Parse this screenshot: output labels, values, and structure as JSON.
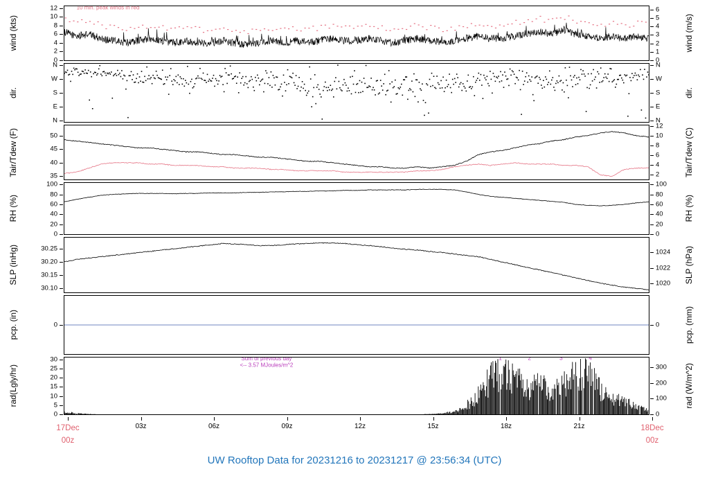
{
  "title": "UW Rooftop Data for 20231216  to  20231217 @ 23:56:34  (UTC)",
  "title_color": "#2276bb",
  "xaxis": {
    "xlim_hours": [
      0,
      24
    ],
    "ticks": [
      {
        "label": "03z",
        "h": 3
      },
      {
        "label": "06z",
        "h": 6
      },
      {
        "label": "09z",
        "h": 9
      },
      {
        "label": "12z",
        "h": 12
      },
      {
        "label": "15z",
        "h": 15
      },
      {
        "label": "18z",
        "h": 18
      },
      {
        "label": "21z",
        "h": 21
      }
    ],
    "start_label": [
      "17Dec",
      "00z"
    ],
    "end_label": [
      "18Dec",
      "00z"
    ],
    "date_color": "#e0606e"
  },
  "chart_data": [
    {
      "name": "wind",
      "type": "line",
      "h": 80,
      "ylabel_left": "wind (kts)",
      "ylabel_right": "wind (m/s)",
      "ylim": [
        0,
        12.4
      ],
      "ticks_left": [
        {
          "label": "0",
          "v": 0
        },
        {
          "label": "2",
          "v": 2
        },
        {
          "label": "4",
          "v": 4
        },
        {
          "label": "6",
          "v": 6
        },
        {
          "label": "8",
          "v": 8
        },
        {
          "label": "10",
          "v": 10
        },
        {
          "label": "12",
          "v": 12
        }
      ],
      "ticks_right": [
        {
          "label": "0",
          "v": 0
        },
        {
          "label": "1",
          "v": 1.944
        },
        {
          "label": "2",
          "v": 3.888
        },
        {
          "label": "3",
          "v": 5.832
        },
        {
          "label": "4",
          "v": 7.775
        },
        {
          "label": "5",
          "v": 9.719
        },
        {
          "label": "6",
          "v": 11.663
        }
      ],
      "series": [
        {
          "name": "wind speed",
          "color": "#000000",
          "style": "line",
          "dense": true,
          "gust": true,
          "noise": 0.85,
          "width": 0.7,
          "x0": 0,
          "dx": 0.5,
          "y": [
            6.5,
            5.5,
            6,
            5,
            4.5,
            4,
            4.5,
            5,
            4.5,
            4,
            4.5,
            4,
            4,
            4.5,
            4,
            3.5,
            4,
            4.5,
            4,
            4.5,
            4,
            4.5,
            5,
            4.5,
            4.5,
            5,
            4.5,
            4,
            4.5,
            5,
            4.5,
            4,
            4.5,
            5,
            5.5,
            5,
            5,
            5.5,
            6,
            6.5,
            6,
            7,
            6,
            5.5,
            5,
            5.5,
            5,
            5.5,
            5
          ]
        },
        {
          "name": "10-min peak winds",
          "color": "#e57384",
          "style": "dots",
          "x0": 0,
          "dx": 0.5,
          "y": [
            9.5,
            8.5,
            9,
            8,
            7.5,
            7,
            7.5,
            8,
            7.5,
            7,
            7.5,
            7,
            7,
            7.5,
            7,
            6.5,
            7,
            7.5,
            7,
            7.5,
            7,
            7.5,
            8,
            7.5,
            7.5,
            8,
            7.5,
            7,
            7.5,
            8,
            7.5,
            7,
            7.5,
            8,
            8.5,
            8,
            8,
            8.5,
            9,
            9.5,
            9,
            10,
            9,
            8.5,
            8,
            8.5,
            8,
            8.5,
            8
          ]
        }
      ],
      "annotations": [
        {
          "text": "10 min. peak winds in red",
          "x": 0.5,
          "y": 11.7,
          "color": "#e57384",
          "size": 8,
          "anchor": "start"
        }
      ]
    },
    {
      "name": "dir",
      "type": "scatter",
      "h": 86,
      "ylabel_left": "dir.",
      "ylabel_right": "dir.",
      "ylim": [
        -8,
        368
      ],
      "ticks_left": [
        {
          "label": "N",
          "v": 360
        },
        {
          "label": "W",
          "v": 270
        },
        {
          "label": "S",
          "v": 180
        },
        {
          "label": "E",
          "v": 90
        },
        {
          "label": "N",
          "v": 0
        }
      ],
      "ticks_right": [
        {
          "label": "N",
          "v": 360
        },
        {
          "label": "W",
          "v": 270
        },
        {
          "label": "S",
          "v": 180
        },
        {
          "label": "E",
          "v": 90
        },
        {
          "label": "N",
          "v": 0
        }
      ],
      "series": [
        {
          "name": "wind direction",
          "color": "#000000",
          "style": "scatter",
          "x0": 0,
          "dx": 1,
          "mean": [
            320,
            310,
            300,
            280,
            270,
            260,
            270,
            260,
            250,
            220,
            200,
            210,
            230,
            220,
            210,
            230,
            250,
            270,
            280,
            260,
            250,
            260,
            270,
            280,
            300
          ],
          "spread": [
            25,
            30,
            40,
            50,
            50,
            60,
            60,
            70,
            80,
            90,
            95,
            90,
            85,
            90,
            95,
            90,
            80,
            70,
            60,
            80,
            90,
            80,
            70,
            60,
            50
          ]
        }
      ]
    },
    {
      "name": "temp",
      "type": "line",
      "h": 80,
      "ylabel_left": "Tair/Tdew (F)",
      "ylabel_right": "Tair/Tdew (C)",
      "ylim": [
        33.8,
        53.8
      ],
      "ticks_left": [
        {
          "label": "35",
          "v": 35
        },
        {
          "label": "40",
          "v": 40
        },
        {
          "label": "45",
          "v": 45
        },
        {
          "label": "50",
          "v": 50
        }
      ],
      "ticks_right": [
        {
          "label": "2",
          "v": 35.6
        },
        {
          "label": "4",
          "v": 39.2
        },
        {
          "label": "6",
          "v": 42.8
        },
        {
          "label": "8",
          "v": 46.4
        },
        {
          "label": "10",
          "v": 50
        },
        {
          "label": "12",
          "v": 53.6
        }
      ],
      "series": [
        {
          "name": "air temperature",
          "color": "#000000",
          "style": "line",
          "noise": 0.15,
          "width": 0.8,
          "x0": 0,
          "dx": 0.5,
          "y": [
            48.5,
            48,
            47.5,
            47,
            46.5,
            46,
            45.5,
            45.5,
            45,
            44.5,
            44,
            44,
            43.5,
            43,
            43,
            42.5,
            42,
            42,
            41.5,
            41,
            40.5,
            40.5,
            40,
            39.5,
            39,
            38.5,
            38.5,
            38,
            38,
            38.5,
            38,
            38.5,
            39,
            40.5,
            43,
            44,
            44.5,
            45.5,
            46.5,
            47,
            48,
            48.5,
            49.5,
            50,
            51,
            51.5,
            51,
            50,
            49.5
          ]
        },
        {
          "name": "dew point",
          "color": "#e57384",
          "style": "line",
          "noise": 0.15,
          "width": 0.8,
          "x0": 0,
          "dx": 0.5,
          "y": [
            36,
            36.5,
            38,
            39.5,
            40,
            40,
            40,
            39.5,
            39.5,
            39,
            39,
            39,
            38.5,
            38.5,
            38,
            38,
            38,
            37.5,
            37.5,
            37,
            37,
            37,
            37,
            36.5,
            36.5,
            36.5,
            36.5,
            36.5,
            36.5,
            37,
            37,
            37.5,
            38.5,
            39,
            39.5,
            39,
            39.5,
            40,
            39.5,
            39.5,
            39.5,
            39,
            39,
            38.5,
            35.5,
            35,
            37.5,
            38,
            38
          ]
        }
      ]
    },
    {
      "name": "rh",
      "type": "line",
      "h": 76,
      "ylabel_left": "RH (%)",
      "ylabel_right": "RH (%)",
      "ylim": [
        0,
        103
      ],
      "ticks_left": [
        {
          "label": "0",
          "v": 0
        },
        {
          "label": "20",
          "v": 20
        },
        {
          "label": "40",
          "v": 40
        },
        {
          "label": "60",
          "v": 60
        },
        {
          "label": "80",
          "v": 80
        },
        {
          "label": "100",
          "v": 100
        }
      ],
      "ticks_right": [
        {
          "label": "0",
          "v": 0
        },
        {
          "label": "20",
          "v": 20
        },
        {
          "label": "40",
          "v": 40
        },
        {
          "label": "60",
          "v": 60
        },
        {
          "label": "80",
          "v": 80
        },
        {
          "label": "100",
          "v": 100
        }
      ],
      "series": [
        {
          "name": "relative humidity",
          "color": "#000000",
          "style": "line",
          "noise": 0.45,
          "width": 0.8,
          "x0": 0,
          "dx": 0.5,
          "y": [
            65,
            70,
            74,
            78,
            80,
            81,
            82,
            82,
            82,
            81,
            82,
            82,
            83,
            83,
            83,
            84,
            84,
            85,
            85,
            86,
            86,
            87,
            87,
            88,
            88,
            89,
            89,
            89,
            89,
            90,
            90,
            90,
            89,
            85,
            80,
            76,
            74,
            72,
            70,
            68,
            66,
            64,
            60,
            58,
            57,
            58,
            60,
            63,
            65
          ]
        }
      ]
    },
    {
      "name": "slp",
      "type": "line",
      "h": 81,
      "ylabel_left": "SLP (inHg)",
      "ylabel_right": "SLP (hPa)",
      "ylim": [
        30.085,
        30.292
      ],
      "ticks_left": [
        {
          "label": "30.25",
          "v": 30.25
        },
        {
          "label": "30.20",
          "v": 30.2
        },
        {
          "label": "30.15",
          "v": 30.15
        },
        {
          "label": "30.10",
          "v": 30.1
        }
      ],
      "ticks_right": [
        {
          "label": "1024",
          "v": 30.2367
        },
        {
          "label": "1022",
          "v": 30.1776
        },
        {
          "label": "1020",
          "v": 30.1185
        }
      ],
      "series": [
        {
          "name": "sea level pressure",
          "color": "#000000",
          "style": "line",
          "noise": 0.0015,
          "width": 0.8,
          "x0": 0,
          "dx": 0.5,
          "y": [
            30.2,
            30.21,
            30.215,
            30.22,
            30.225,
            30.23,
            30.235,
            30.24,
            30.245,
            30.25,
            30.255,
            30.26,
            30.265,
            30.27,
            30.268,
            30.265,
            30.262,
            30.262,
            30.265,
            30.268,
            30.27,
            30.272,
            30.272,
            30.27,
            30.265,
            30.262,
            30.258,
            30.252,
            30.248,
            30.245,
            30.24,
            30.236,
            30.23,
            30.225,
            30.22,
            30.21,
            30.2,
            30.19,
            30.18,
            30.17,
            30.16,
            30.15,
            30.14,
            30.13,
            30.12,
            30.112,
            30.105,
            30.1,
            30.095
          ]
        }
      ]
    },
    {
      "name": "pcp",
      "type": "line",
      "h": 86,
      "ylabel_left": "pcp. (in)",
      "ylabel_right": "pcp. (mm)",
      "ylim": [
        -1,
        1
      ],
      "ticks_left": [
        {
          "label": "0",
          "v": 0
        }
      ],
      "ticks_right": [
        {
          "label": "0",
          "v": 0
        }
      ],
      "series": [
        {
          "name": "precipitation",
          "color": "#6f86c2",
          "style": "line",
          "noise": 0,
          "width": 1,
          "x0": 0,
          "dx": 12,
          "y": [
            0,
            0,
            0
          ]
        }
      ]
    },
    {
      "name": "rad",
      "type": "bars",
      "h": 84,
      "ylabel_left": "rad(Lgly/hr)",
      "ylabel_right": "rad (W/m^2)",
      "ylim": [
        0,
        31
      ],
      "ticks_left": [
        {
          "label": "0",
          "v": 0
        },
        {
          "label": "5",
          "v": 5
        },
        {
          "label": "10",
          "v": 10
        },
        {
          "label": "15",
          "v": 15
        },
        {
          "label": "20",
          "v": 20
        },
        {
          "label": "25",
          "v": 25
        },
        {
          "label": "30",
          "v": 30
        }
      ],
      "ticks_right": [
        {
          "label": "0",
          "v": 0
        },
        {
          "label": "100",
          "v": 8.6
        },
        {
          "label": "200",
          "v": 17.2
        },
        {
          "label": "300",
          "v": 25.8
        }
      ],
      "series": [
        {
          "name": "solar radiation",
          "color": "#000000",
          "style": "bars",
          "x0": 0,
          "dx": 0.5,
          "y": [
            1.8,
            0.6,
            0.2,
            0,
            0,
            0,
            0,
            0,
            0,
            0,
            0,
            0,
            0,
            0,
            0,
            0,
            0,
            0,
            0,
            0,
            0,
            0,
            0,
            0,
            0,
            0,
            0,
            0,
            0,
            0,
            0.2,
            0.5,
            1.5,
            4,
            12,
            22,
            26,
            22,
            17,
            18,
            15,
            20,
            24,
            28,
            16,
            10,
            8,
            5,
            2
          ]
        }
      ],
      "annotations": [
        {
          "text": "Sum of previous day",
          "x": 8.3,
          "y": 29.4,
          "color": "#b93cbb",
          "size": 8,
          "anchor": "middle"
        },
        {
          "text": "<-- 3.57 MJoules/m^2",
          "x": 8.3,
          "y": 25.9,
          "color": "#b93cbb",
          "size": 8,
          "anchor": "middle"
        },
        {
          "text": "1",
          "x": 17.9,
          "y": 29.6,
          "color": "#b93cbb",
          "size": 8.5,
          "anchor": "middle"
        },
        {
          "text": "2",
          "x": 19.1,
          "y": 29.6,
          "color": "#b93cbb",
          "size": 8.5,
          "anchor": "middle"
        },
        {
          "text": "3",
          "x": 20.4,
          "y": 29.6,
          "color": "#b93cbb",
          "size": 8.5,
          "anchor": "middle"
        },
        {
          "text": "4",
          "x": 21.6,
          "y": 29.6,
          "color": "#b93cbb",
          "size": 8.5,
          "anchor": "middle"
        }
      ]
    }
  ]
}
